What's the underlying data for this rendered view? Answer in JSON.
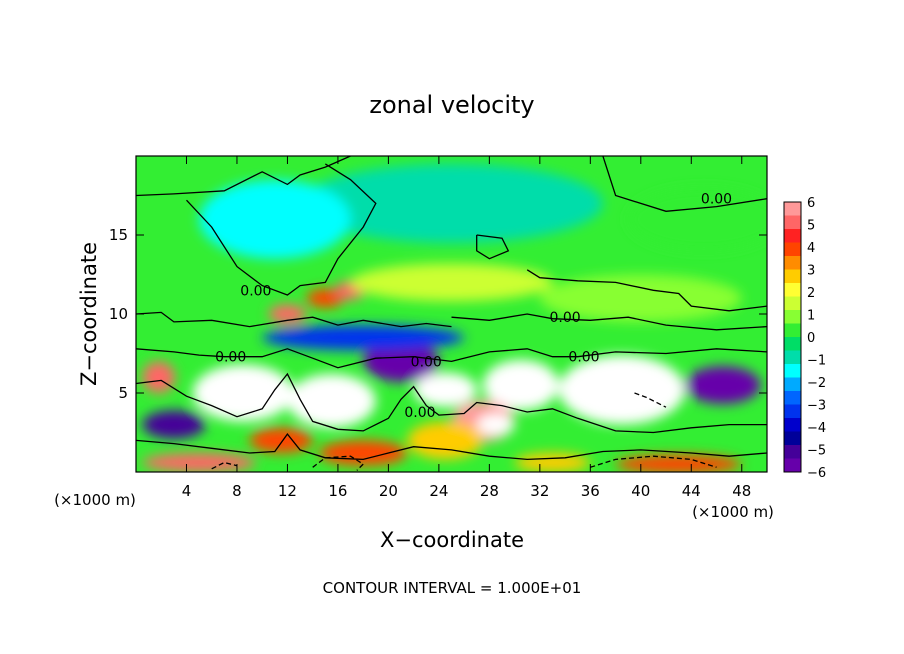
{
  "chart_data": {
    "type": "heatmap",
    "title": "zonal velocity",
    "xlabel": "X−coordinate",
    "ylabel": "Z−coordinate",
    "x_unit_left": "(×1000 m)",
    "x_unit_right": "(×1000 m)",
    "footer": "CONTOUR INTERVAL = 1.000E+01",
    "xlim": [
      0,
      50
    ],
    "ylim": [
      0,
      20
    ],
    "x_ticks": [
      "4",
      "8",
      "12",
      "16",
      "20",
      "24",
      "28",
      "32",
      "36",
      "40",
      "44",
      "48"
    ],
    "y_ticks": [
      "5",
      "10",
      "15"
    ],
    "contour_labels": [
      {
        "text": "0.00",
        "x": 46,
        "y": 17.3
      },
      {
        "text": "0.00",
        "x": 9.5,
        "y": 11.5
      },
      {
        "text": "0.00",
        "x": 34,
        "y": 9.8
      },
      {
        "text": "0.00",
        "x": 7.5,
        "y": 7.3
      },
      {
        "text": "0.00",
        "x": 23,
        "y": 7.0
      },
      {
        "text": "0.00",
        "x": 35.5,
        "y": 7.3
      },
      {
        "text": "0.00",
        "x": 22.5,
        "y": 3.8
      }
    ],
    "colorbar": {
      "labels": [
        "6",
        "5",
        "4",
        "3",
        "2",
        "1",
        "0",
        "−1",
        "−2",
        "−3",
        "−4",
        "−5",
        "−6"
      ],
      "colors": [
        "#ff9999",
        "#ff6666",
        "#ff2222",
        "#ff4400",
        "#ff8c00",
        "#ffcc00",
        "#ffff33",
        "#ccff33",
        "#88ff33",
        "#33ee33",
        "#00dd66",
        "#00ddaa",
        "#00ffff",
        "#00aaff",
        "#0066ff",
        "#0033ee",
        "#0000cc",
        "#000099",
        "#440099",
        "#6600aa"
      ]
    },
    "blobs": [
      {
        "cx": 8.5,
        "cy": 5.0,
        "rx": 4.0,
        "ry": 1.8,
        "v": -8
      },
      {
        "cx": 9.0,
        "cy": 5.0,
        "rx": 2.5,
        "ry": 1.0,
        "v": -20
      },
      {
        "cx": 15.5,
        "cy": 4.5,
        "rx": 3.5,
        "ry": 1.7,
        "v": 7
      },
      {
        "cx": 15.5,
        "cy": 4.5,
        "rx": 2.0,
        "ry": 1.0,
        "v": 14
      },
      {
        "cx": 21.0,
        "cy": 7.0,
        "rx": 3.0,
        "ry": 1.3,
        "v": -6
      },
      {
        "cx": 24.5,
        "cy": 5.2,
        "rx": 2.5,
        "ry": 1.1,
        "v": -8
      },
      {
        "cx": 25.0,
        "cy": 5.3,
        "rx": 1.5,
        "ry": 0.6,
        "v": -20
      },
      {
        "cx": 30.5,
        "cy": 5.5,
        "rx": 3.0,
        "ry": 1.6,
        "v": -8
      },
      {
        "cx": 30.5,
        "cy": 5.5,
        "rx": 2.0,
        "ry": 1.0,
        "v": -20
      },
      {
        "cx": 27.5,
        "cy": 3.2,
        "rx": 2.5,
        "ry": 1.3,
        "v": 6
      },
      {
        "cx": 28.5,
        "cy": 3.0,
        "rx": 1.5,
        "ry": 0.7,
        "v": 14
      },
      {
        "cx": 38.5,
        "cy": 5.2,
        "rx": 5.0,
        "ry": 2.2,
        "v": 7
      },
      {
        "cx": 38.5,
        "cy": 5.0,
        "rx": 3.5,
        "ry": 1.3,
        "v": 14
      },
      {
        "cx": 46.5,
        "cy": 5.5,
        "rx": 3.0,
        "ry": 1.2,
        "v": -6
      },
      {
        "cx": 1.8,
        "cy": 6.0,
        "rx": 1.3,
        "ry": 1.0,
        "v": 5
      },
      {
        "cx": 3.0,
        "cy": 3.0,
        "rx": 2.5,
        "ry": 0.9,
        "v": -5
      },
      {
        "cx": 24.5,
        "cy": 2.0,
        "rx": 3.0,
        "ry": 1.2,
        "v": 3
      },
      {
        "cx": 12.0,
        "cy": 10.0,
        "rx": 1.5,
        "ry": 0.6,
        "v": 5
      },
      {
        "cx": 15.0,
        "cy": 11.0,
        "rx": 1.5,
        "ry": 0.6,
        "v": 4
      },
      {
        "cx": 17.0,
        "cy": 11.5,
        "rx": 1.2,
        "ry": 0.6,
        "v": 5
      },
      {
        "cx": 11.5,
        "cy": 2.0,
        "rx": 2.5,
        "ry": 0.8,
        "v": 4
      },
      {
        "cx": 18.0,
        "cy": 1.2,
        "rx": 3.5,
        "ry": 0.8,
        "v": 4
      },
      {
        "cx": 5.0,
        "cy": 0.6,
        "rx": 4.5,
        "ry": 0.6,
        "v": 5
      },
      {
        "cx": 43.0,
        "cy": 0.5,
        "rx": 5.0,
        "ry": 0.6,
        "v": 4
      },
      {
        "cx": 33.0,
        "cy": 0.6,
        "rx": 3.0,
        "ry": 0.6,
        "v": 3
      },
      {
        "cx": 25.0,
        "cy": 17.0,
        "rx": 12.0,
        "ry": 2.5,
        "v": -1
      },
      {
        "cx": 11.0,
        "cy": 16.0,
        "rx": 6.0,
        "ry": 2.5,
        "v": -1.5
      },
      {
        "cx": 25.0,
        "cy": 12.0,
        "rx": 8.0,
        "ry": 1.2,
        "v": 1.2
      },
      {
        "cx": 40.0,
        "cy": 11.0,
        "rx": 8.0,
        "ry": 1.5,
        "v": 0.8
      },
      {
        "cx": 45.0,
        "cy": 16.0,
        "rx": 6.0,
        "ry": 2.0,
        "v": 0.6
      },
      {
        "cx": 18.0,
        "cy": 8.5,
        "rx": 8.0,
        "ry": 0.8,
        "v": -3
      }
    ],
    "contours": [
      {
        "dash": false,
        "pts": [
          [
            0,
            17.5
          ],
          [
            3,
            17.6
          ],
          [
            7,
            17.8
          ],
          [
            10,
            19.0
          ],
          [
            12,
            18.2
          ],
          [
            13,
            18.8
          ],
          [
            15,
            19.3
          ],
          [
            17,
            20
          ]
        ]
      },
      {
        "dash": false,
        "pts": [
          [
            37,
            20
          ],
          [
            38,
            17.5
          ],
          [
            42,
            16.5
          ],
          [
            46,
            16.8
          ],
          [
            50,
            17.3
          ]
        ]
      },
      {
        "dash": false,
        "pts": [
          [
            4,
            17.2
          ],
          [
            6,
            15.5
          ],
          [
            8,
            13.0
          ],
          [
            10,
            11.8
          ],
          [
            12,
            11.2
          ],
          [
            13,
            11.8
          ],
          [
            15,
            12.0
          ],
          [
            16,
            13.5
          ],
          [
            18,
            15.5
          ],
          [
            19,
            17.0
          ],
          [
            17,
            18.5
          ],
          [
            15,
            19.5
          ]
        ]
      },
      {
        "dash": false,
        "pts": [
          [
            27,
            15.0
          ],
          [
            29,
            14.8
          ],
          [
            29.5,
            14.0
          ],
          [
            28,
            13.5
          ],
          [
            27,
            14.0
          ],
          [
            27,
            15.0
          ]
        ]
      },
      {
        "dash": false,
        "pts": [
          [
            31,
            12.8
          ],
          [
            32,
            12.3
          ],
          [
            35,
            12.1
          ],
          [
            38,
            12.0
          ],
          [
            41,
            11.5
          ],
          [
            43,
            11.3
          ],
          [
            44,
            10.5
          ],
          [
            47,
            10.2
          ],
          [
            50,
            10.5
          ]
        ]
      },
      {
        "dash": false,
        "pts": [
          [
            25,
            9.8
          ],
          [
            28,
            9.6
          ],
          [
            31,
            10.0
          ],
          [
            33,
            9.7
          ],
          [
            36,
            9.6
          ],
          [
            39,
            9.8
          ],
          [
            42,
            9.3
          ],
          [
            46,
            9.0
          ],
          [
            50,
            9.2
          ]
        ]
      },
      {
        "dash": false,
        "pts": [
          [
            0,
            10.0
          ],
          [
            2,
            10.1
          ],
          [
            3,
            9.5
          ],
          [
            6,
            9.6
          ],
          [
            9,
            9.2
          ],
          [
            12,
            9.6
          ],
          [
            14,
            9.8
          ],
          [
            16,
            9.3
          ],
          [
            18,
            9.6
          ],
          [
            21,
            9.2
          ],
          [
            23,
            9.4
          ],
          [
            25,
            9.2
          ]
        ]
      },
      {
        "dash": false,
        "pts": [
          [
            0,
            7.8
          ],
          [
            3,
            7.6
          ],
          [
            5,
            7.4
          ],
          [
            7,
            7.3
          ],
          [
            10,
            7.3
          ],
          [
            12,
            7.8
          ],
          [
            14,
            7.2
          ],
          [
            16,
            6.6
          ],
          [
            19,
            7.2
          ],
          [
            22,
            7.3
          ],
          [
            25,
            7.0
          ],
          [
            28,
            7.6
          ],
          [
            31,
            7.8
          ],
          [
            33,
            7.3
          ],
          [
            35,
            7.3
          ],
          [
            38,
            7.6
          ],
          [
            42,
            7.5
          ],
          [
            46,
            7.8
          ],
          [
            50,
            7.6
          ]
        ]
      },
      {
        "dash": false,
        "pts": [
          [
            0,
            5.6
          ],
          [
            2,
            5.8
          ],
          [
            4,
            4.8
          ],
          [
            6,
            4.2
          ],
          [
            8,
            3.5
          ],
          [
            10,
            4.0
          ],
          [
            11,
            5.2
          ],
          [
            12,
            6.2
          ],
          [
            13,
            4.6
          ],
          [
            14,
            3.2
          ],
          [
            16,
            2.7
          ],
          [
            18,
            2.6
          ],
          [
            20,
            3.4
          ],
          [
            21,
            4.6
          ],
          [
            22,
            5.4
          ],
          [
            23,
            4.2
          ],
          [
            24,
            3.6
          ],
          [
            26,
            3.7
          ],
          [
            27,
            4.4
          ],
          [
            29,
            4.2
          ],
          [
            31,
            3.8
          ],
          [
            33,
            4.0
          ],
          [
            35,
            3.4
          ],
          [
            38,
            2.6
          ],
          [
            41,
            2.5
          ],
          [
            44,
            2.8
          ],
          [
            47,
            3.0
          ],
          [
            50,
            3.0
          ]
        ]
      },
      {
        "dash": false,
        "pts": [
          [
            0,
            2.0
          ],
          [
            3,
            1.8
          ],
          [
            6,
            1.5
          ],
          [
            9,
            1.2
          ],
          [
            11,
            1.3
          ],
          [
            12,
            2.4
          ],
          [
            13,
            1.4
          ],
          [
            15,
            0.9
          ],
          [
            18,
            0.8
          ],
          [
            20,
            1.2
          ],
          [
            22,
            1.6
          ],
          [
            25,
            1.4
          ],
          [
            28,
            1.0
          ],
          [
            31,
            0.8
          ],
          [
            34,
            0.9
          ],
          [
            37,
            1.3
          ],
          [
            40,
            1.4
          ],
          [
            44,
            1.2
          ],
          [
            47,
            1.0
          ],
          [
            50,
            1.2
          ]
        ]
      },
      {
        "dash": true,
        "pts": [
          [
            36,
            0.3
          ],
          [
            38,
            0.8
          ],
          [
            41,
            1.0
          ],
          [
            44,
            0.8
          ],
          [
            46,
            0.3
          ]
        ]
      },
      {
        "dash": true,
        "pts": [
          [
            14,
            0.3
          ],
          [
            15,
            0.9
          ],
          [
            17,
            1.0
          ],
          [
            18,
            0.5
          ],
          [
            17.5,
            0.1
          ]
        ]
      },
      {
        "dash": true,
        "pts": [
          [
            6,
            0.2
          ],
          [
            7,
            0.6
          ],
          [
            8,
            0.4
          ]
        ]
      },
      {
        "dash": true,
        "pts": [
          [
            39.5,
            5.0
          ],
          [
            40.5,
            4.7
          ],
          [
            41.5,
            4.3
          ],
          [
            42,
            4.1
          ]
        ]
      }
    ]
  }
}
